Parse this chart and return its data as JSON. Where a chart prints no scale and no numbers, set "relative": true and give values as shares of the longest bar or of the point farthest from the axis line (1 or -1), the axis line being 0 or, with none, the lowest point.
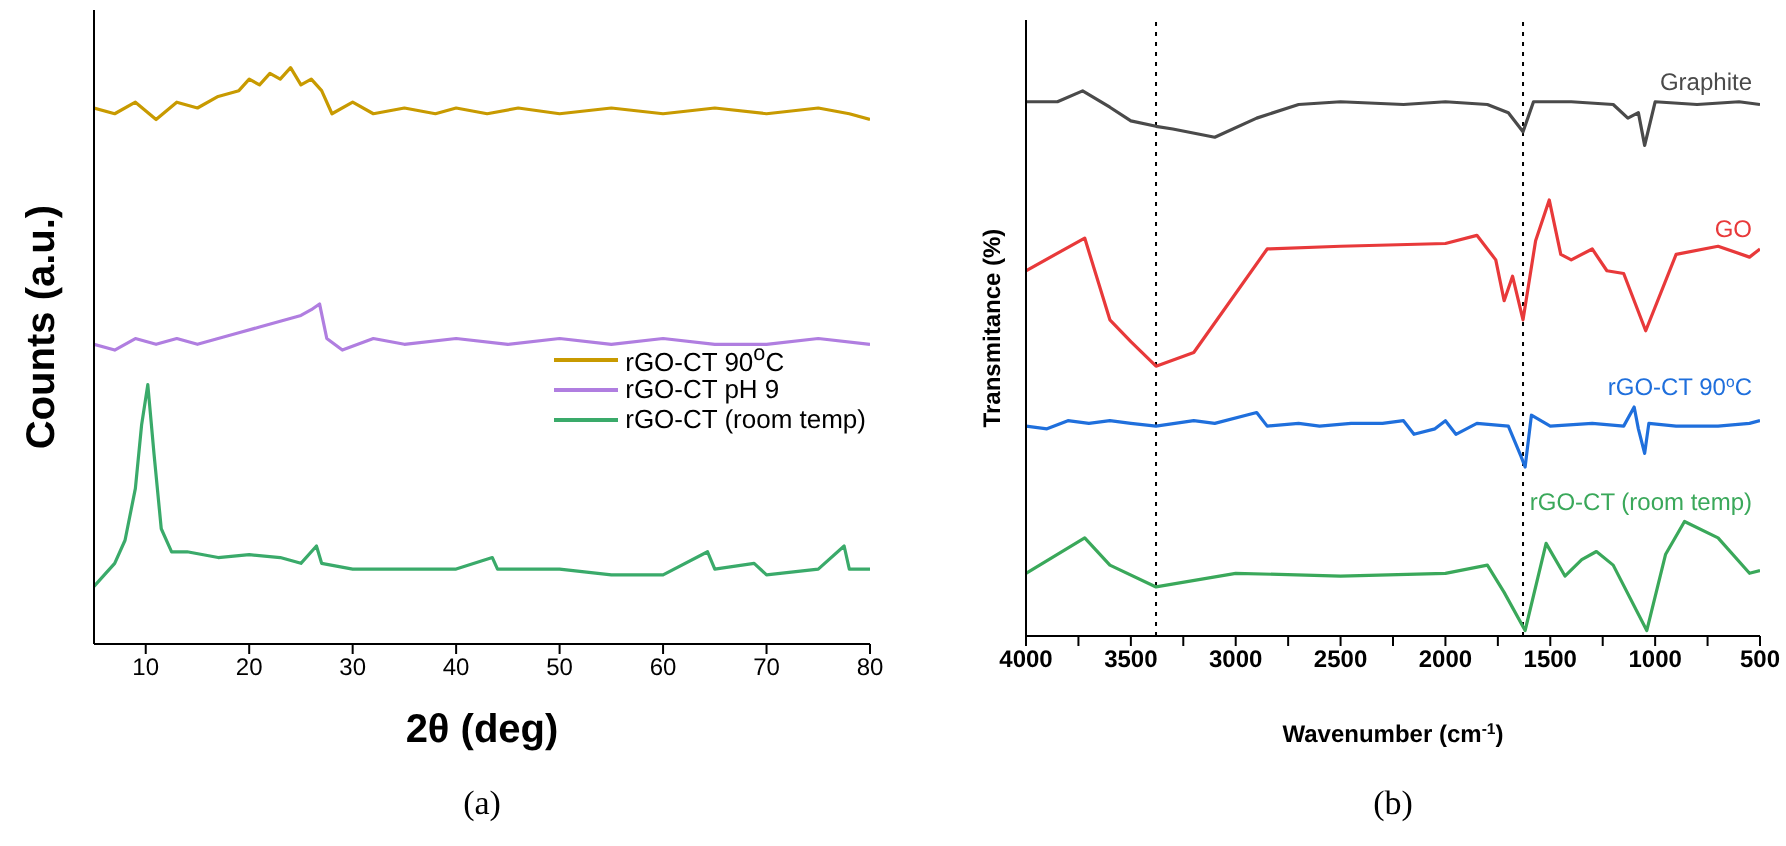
{
  "chart_data": [
    {
      "type": "line",
      "relative": true,
      "xlabel": "2θ (deg)",
      "ylabel": "Counts (a.u.)",
      "xlim": [
        5,
        80
      ],
      "xticks": [
        10,
        20,
        30,
        40,
        50,
        60,
        70,
        80
      ],
      "legend": "right",
      "annotations": [
        "(a)"
      ],
      "series": [
        {
          "name": "rGO-CT 90$^{o}$C",
          "color": "#c89a00",
          "x": [
            5,
            7,
            9,
            11,
            13,
            15,
            17,
            19,
            20,
            21,
            22,
            23,
            24,
            25,
            26,
            27,
            28,
            30,
            32,
            35,
            38,
            40,
            43,
            46,
            50,
            55,
            60,
            65,
            70,
            75,
            78,
            80
          ],
          "values": [
            0.93,
            0.92,
            0.94,
            0.91,
            0.94,
            0.93,
            0.95,
            0.96,
            0.98,
            0.97,
            0.99,
            0.98,
            1.0,
            0.97,
            0.98,
            0.96,
            0.92,
            0.94,
            0.92,
            0.93,
            0.92,
            0.93,
            0.92,
            0.93,
            0.92,
            0.93,
            0.92,
            0.93,
            0.92,
            0.93,
            0.92,
            0.91
          ]
        },
        {
          "name": "rGO-CT pH 9",
          "color": "#b07ee0",
          "x": [
            5,
            7,
            9,
            11,
            13,
            15,
            17,
            19,
            21,
            23,
            25,
            26,
            26.8,
            27.5,
            29,
            32,
            35,
            40,
            45,
            50,
            55,
            60,
            65,
            70,
            75,
            80
          ],
          "values": [
            0.52,
            0.51,
            0.53,
            0.52,
            0.53,
            0.52,
            0.53,
            0.54,
            0.55,
            0.56,
            0.57,
            0.58,
            0.59,
            0.53,
            0.51,
            0.53,
            0.52,
            0.53,
            0.52,
            0.53,
            0.52,
            0.53,
            0.52,
            0.52,
            0.53,
            0.52
          ]
        },
        {
          "name": "rGO-CT (room temp)",
          "color": "#3aaa6a",
          "x": [
            5,
            6,
            7,
            8,
            9,
            9.6,
            10.2,
            10.8,
            11.5,
            12.5,
            14,
            17,
            20,
            23,
            25,
            26.5,
            27,
            30,
            35,
            40,
            43.5,
            44,
            50,
            55,
            60,
            64.3,
            65,
            68.8,
            70,
            75,
            77.5,
            78,
            80
          ],
          "values": [
            0.1,
            0.12,
            0.14,
            0.18,
            0.27,
            0.38,
            0.45,
            0.33,
            0.2,
            0.16,
            0.16,
            0.15,
            0.155,
            0.15,
            0.14,
            0.17,
            0.14,
            0.13,
            0.13,
            0.13,
            0.15,
            0.13,
            0.13,
            0.12,
            0.12,
            0.16,
            0.13,
            0.14,
            0.12,
            0.13,
            0.17,
            0.13,
            0.13
          ]
        }
      ]
    },
    {
      "type": "line",
      "relative": true,
      "xlabel": "Wavenumber (cm$^{-1}$)",
      "ylabel": "Transmitance (%)",
      "xlim": [
        4000,
        500
      ],
      "xticks": [
        4000,
        {
          "value": 3750,
          "label": null
        },
        3500,
        {
          "value": 3250,
          "label": null
        },
        3000,
        {
          "value": 2750,
          "label": null
        },
        2500,
        {
          "value": 2250,
          "label": null
        },
        2000,
        {
          "value": 1750,
          "label": null
        },
        1500,
        {
          "value": 1250,
          "label": null
        },
        1000,
        {
          "value": 750,
          "label": null
        },
        500
      ],
      "annotations": [
        "(b)"
      ],
      "ref_lines": [
        {
          "axis": "x",
          "value": 3380,
          "line_style": "dotted",
          "color": "#000000"
        },
        {
          "axis": "x",
          "value": 1630,
          "line_style": "dotted",
          "color": "#000000"
        }
      ],
      "series": [
        {
          "name": "Graphite",
          "color": "#4a4a4a",
          "x": [
            4000,
            3850,
            3730,
            3600,
            3500,
            3380,
            3300,
            3100,
            2900,
            2700,
            2500,
            2200,
            2000,
            1800,
            1700,
            1630,
            1580,
            1400,
            1200,
            1130,
            1080,
            1050,
            1000,
            800,
            600,
            500
          ],
          "values": [
            0.98,
            0.98,
            1.0,
            0.97,
            0.945,
            0.935,
            0.93,
            0.915,
            0.95,
            0.975,
            0.98,
            0.975,
            0.98,
            0.975,
            0.96,
            0.925,
            0.98,
            0.98,
            0.975,
            0.95,
            0.96,
            0.9,
            0.98,
            0.975,
            0.98,
            0.975
          ]
        },
        {
          "name": "GO",
          "color": "#e8393a",
          "x": [
            4000,
            3720,
            3600,
            3500,
            3380,
            3200,
            2850,
            2500,
            2000,
            1850,
            1760,
            1720,
            1680,
            1630,
            1570,
            1505,
            1450,
            1400,
            1300,
            1230,
            1150,
            1045,
            900,
            700,
            550,
            500
          ],
          "values": [
            0.67,
            0.73,
            0.58,
            0.54,
            0.495,
            0.52,
            0.71,
            0.715,
            0.72,
            0.735,
            0.69,
            0.615,
            0.66,
            0.58,
            0.725,
            0.8,
            0.7,
            0.69,
            0.71,
            0.67,
            0.665,
            0.56,
            0.7,
            0.715,
            0.695,
            0.71
          ]
        },
        {
          "name": "rGO-CT 90$^{o}$C",
          "color": "#1f6fdc",
          "x": [
            4000,
            3900,
            3800,
            3700,
            3600,
            3500,
            3380,
            3200,
            3100,
            2900,
            2850,
            2700,
            2600,
            2450,
            2300,
            2200,
            2150,
            2050,
            2000,
            1950,
            1850,
            1700,
            1640,
            1620,
            1590,
            1500,
            1300,
            1150,
            1100,
            1080,
            1050,
            1030,
            900,
            700,
            550,
            500
          ],
          "values": [
            0.385,
            0.38,
            0.395,
            0.39,
            0.395,
            0.39,
            0.385,
            0.395,
            0.39,
            0.41,
            0.385,
            0.39,
            0.385,
            0.39,
            0.39,
            0.395,
            0.37,
            0.38,
            0.395,
            0.37,
            0.39,
            0.385,
            0.33,
            0.31,
            0.405,
            0.385,
            0.39,
            0.385,
            0.42,
            0.38,
            0.335,
            0.39,
            0.385,
            0.385,
            0.39,
            0.395
          ]
        },
        {
          "name": "rGO-CT (room temp)",
          "color": "#3aa85a",
          "x": [
            4000,
            3720,
            3600,
            3380,
            3000,
            2500,
            2000,
            1800,
            1720,
            1620,
            1520,
            1430,
            1350,
            1280,
            1200,
            1040,
            950,
            860,
            700,
            550,
            500
          ],
          "values": [
            0.115,
            0.18,
            0.13,
            0.09,
            0.115,
            0.11,
            0.115,
            0.13,
            0.08,
            0.01,
            0.17,
            0.11,
            0.14,
            0.155,
            0.13,
            0.01,
            0.15,
            0.21,
            0.18,
            0.115,
            0.12
          ]
        }
      ]
    }
  ]
}
